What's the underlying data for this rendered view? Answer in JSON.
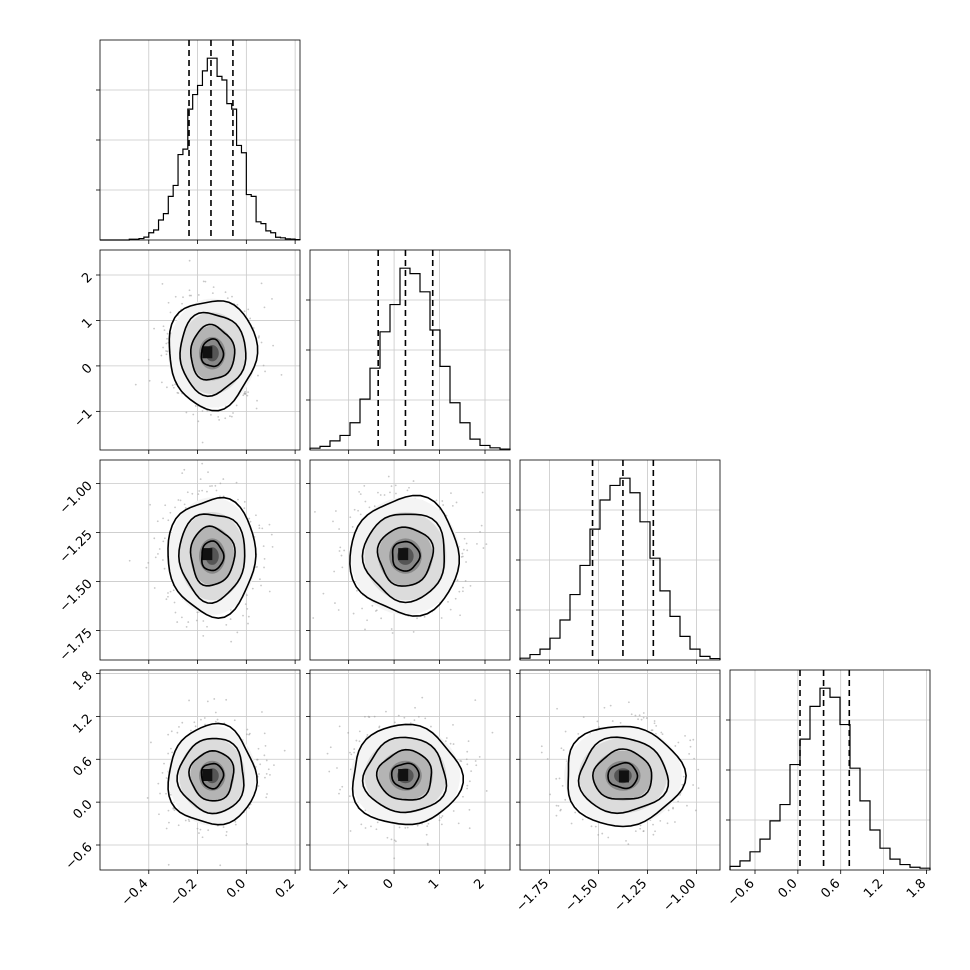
{
  "chart_data": {
    "type": "corner",
    "title": "",
    "parameters": [
      {
        "index": 0,
        "range": [
          -0.6,
          0.22
        ],
        "xticks": [
          -0.4,
          -0.2,
          0.0,
          0.2
        ],
        "xtick_labels": [
          "−0.4",
          "−0.2",
          "0.0",
          "0.2"
        ],
        "quantiles": [
          -0.235,
          -0.145,
          -0.055
        ],
        "hist": {
          "edges": [
            -0.6,
            -0.58,
            -0.56,
            -0.54,
            -0.52,
            -0.5,
            -0.48,
            -0.46,
            -0.44,
            -0.42,
            -0.4,
            -0.38,
            -0.36,
            -0.34,
            -0.32,
            -0.3,
            -0.28,
            -0.26,
            -0.24,
            -0.22,
            -0.2,
            -0.18,
            -0.16,
            -0.14,
            -0.12,
            -0.1,
            -0.08,
            -0.06,
            -0.04,
            -0.02,
            0.0,
            0.02,
            0.04,
            0.06,
            0.08,
            0.1,
            0.12,
            0.14,
            0.16,
            0.18,
            0.2,
            0.22
          ],
          "counts": [
            0,
            0,
            0,
            0,
            0,
            0,
            0.004,
            0.004,
            0.008,
            0.016,
            0.04,
            0.055,
            0.11,
            0.145,
            0.24,
            0.3,
            0.47,
            0.5,
            0.72,
            0.8,
            0.85,
            0.93,
            1.0,
            1.0,
            0.9,
            0.88,
            0.75,
            0.72,
            0.52,
            0.48,
            0.25,
            0.24,
            0.1,
            0.09,
            0.05,
            0.04,
            0.015,
            0.012,
            0.006,
            0.005,
            0.002
          ]
        }
      },
      {
        "index": 1,
        "range": [
          -1.85,
          2.55
        ],
        "xticks": [
          -1,
          0,
          1,
          2
        ],
        "xtick_labels": [
          "−1",
          "0",
          "1",
          "2"
        ],
        "yticks": [
          -1,
          0,
          1,
          2
        ],
        "ytick_labels": [
          "−1",
          "0",
          "1",
          "2"
        ],
        "quantiles": [
          -0.35,
          0.25,
          0.85
        ],
        "hist": {
          "edges": [
            -1.85,
            -1.63,
            -1.41,
            -1.19,
            -0.97,
            -0.75,
            -0.53,
            -0.31,
            -0.09,
            0.13,
            0.35,
            0.57,
            0.79,
            1.01,
            1.23,
            1.45,
            1.67,
            1.89,
            2.11,
            2.33,
            2.55
          ],
          "counts": [
            0.01,
            0.02,
            0.05,
            0.08,
            0.15,
            0.28,
            0.45,
            0.65,
            0.8,
            1.0,
            0.97,
            0.87,
            0.66,
            0.46,
            0.26,
            0.15,
            0.06,
            0.025,
            0.012,
            0.005
          ]
        }
      },
      {
        "index": 2,
        "range": [
          -1.9,
          -0.88
        ],
        "xticks": [
          -1.75,
          -1.5,
          -1.25,
          -1.0
        ],
        "xtick_labels": [
          "−1.75",
          "−1.50",
          "−1.25",
          "−1.00"
        ],
        "yticks": [
          -1.75,
          -1.5,
          -1.25,
          -1.0
        ],
        "ytick_labels": [
          "−1.75",
          "−1.50",
          "−1.25",
          "−1.00"
        ],
        "quantiles": [
          -1.53,
          -1.375,
          -1.22
        ],
        "hist": {
          "edges": [
            -1.9,
            -1.849,
            -1.798,
            -1.747,
            -1.696,
            -1.645,
            -1.594,
            -1.543,
            -1.492,
            -1.441,
            -1.39,
            -1.339,
            -1.288,
            -1.237,
            -1.186,
            -1.135,
            -1.084,
            -1.033,
            -0.982,
            -0.931,
            -0.88
          ],
          "counts": [
            0.01,
            0.03,
            0.06,
            0.12,
            0.22,
            0.36,
            0.52,
            0.72,
            0.88,
            0.96,
            1.0,
            0.92,
            0.76,
            0.56,
            0.38,
            0.24,
            0.13,
            0.06,
            0.02,
            0.008
          ]
        }
      },
      {
        "index": 3,
        "range": [
          -0.95,
          1.85
        ],
        "xticks": [
          -0.6,
          0.0,
          0.6,
          1.2,
          1.8
        ],
        "xtick_labels": [
          "−0.6",
          "0.0",
          "0.6",
          "1.2",
          "1.8"
        ],
        "yticks": [
          -0.6,
          0.0,
          0.6,
          1.2,
          1.8
        ],
        "ytick_labels": [
          "−0.6",
          "0.0",
          "0.6",
          "1.2",
          "1.8"
        ],
        "quantiles": [
          0.03,
          0.36,
          0.72
        ],
        "hist": {
          "edges": [
            -0.95,
            -0.81,
            -0.67,
            -0.53,
            -0.39,
            -0.25,
            -0.11,
            0.03,
            0.17,
            0.31,
            0.45,
            0.59,
            0.73,
            0.87,
            1.01,
            1.15,
            1.29,
            1.43,
            1.57,
            1.71,
            1.85
          ],
          "counts": [
            0.02,
            0.05,
            0.1,
            0.17,
            0.27,
            0.36,
            0.58,
            0.72,
            0.9,
            1.0,
            0.95,
            0.8,
            0.56,
            0.38,
            0.22,
            0.12,
            0.06,
            0.03,
            0.015,
            0.01
          ]
        }
      }
    ],
    "pairs": [
      {
        "x": 0,
        "y": 1,
        "center": [
          -0.14,
          0.28
        ],
        "sigma": [
          0.09,
          0.6
        ],
        "peak": [
          -0.16,
          0.3
        ]
      },
      {
        "x": 0,
        "y": 2,
        "center": [
          -0.14,
          -1.37
        ],
        "sigma": [
          0.09,
          0.15
        ],
        "peak": [
          -0.16,
          -1.36
        ]
      },
      {
        "x": 1,
        "y": 2,
        "center": [
          0.25,
          -1.37
        ],
        "sigma": [
          0.6,
          0.15
        ],
        "peak": [
          0.2,
          -1.36
        ]
      },
      {
        "x": 0,
        "y": 3,
        "center": [
          -0.14,
          0.37
        ],
        "sigma": [
          0.09,
          0.35
        ],
        "peak": [
          -0.16,
          0.38
        ]
      },
      {
        "x": 1,
        "y": 3,
        "center": [
          0.25,
          0.37
        ],
        "sigma": [
          0.6,
          0.35
        ],
        "peak": [
          0.2,
          0.38
        ]
      },
      {
        "x": 2,
        "y": 3,
        "center": [
          -1.375,
          0.37
        ],
        "sigma": [
          0.15,
          0.35
        ],
        "peak": [
          -1.37,
          0.36
        ]
      }
    ],
    "contour_levels_sigma": [
      0.5,
      1.0,
      1.5,
      2.0
    ],
    "grid": true,
    "legend": "none"
  }
}
